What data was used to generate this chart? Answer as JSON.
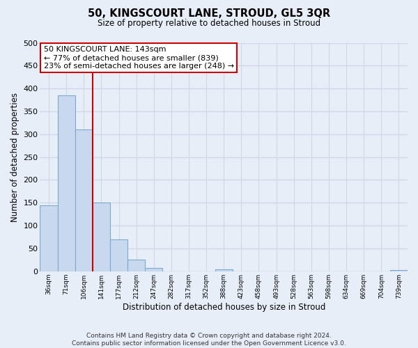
{
  "title": "50, KINGSCOURT LANE, STROUD, GL5 3QR",
  "subtitle": "Size of property relative to detached houses in Stroud",
  "xlabel": "Distribution of detached houses by size in Stroud",
  "ylabel": "Number of detached properties",
  "bin_labels": [
    "36sqm",
    "71sqm",
    "106sqm",
    "141sqm",
    "177sqm",
    "212sqm",
    "247sqm",
    "282sqm",
    "317sqm",
    "352sqm",
    "388sqm",
    "423sqm",
    "458sqm",
    "493sqm",
    "528sqm",
    "563sqm",
    "598sqm",
    "634sqm",
    "669sqm",
    "704sqm",
    "739sqm"
  ],
  "bar_values": [
    144,
    385,
    310,
    150,
    70,
    25,
    8,
    0,
    0,
    0,
    5,
    0,
    0,
    0,
    0,
    0,
    0,
    0,
    0,
    0,
    2
  ],
  "bar_fill_color": "#c8d8ee",
  "bar_edge_color": "#7aaacf",
  "property_line_color": "#cc0000",
  "property_line_x": 2.5,
  "annotation_title": "50 KINGSCOURT LANE: 143sqm",
  "annotation_line1": "← 77% of detached houses are smaller (839)",
  "annotation_line2": "23% of semi-detached houses are larger (248) →",
  "annotation_box_facecolor": "#ffffff",
  "annotation_box_edgecolor": "#cc0000",
  "ylim": [
    0,
    500
  ],
  "yticks": [
    0,
    50,
    100,
    150,
    200,
    250,
    300,
    350,
    400,
    450,
    500
  ],
  "grid_color": "#d0d8e8",
  "bg_color": "#e8eef8",
  "footer_line1": "Contains HM Land Registry data © Crown copyright and database right 2024.",
  "footer_line2": "Contains public sector information licensed under the Open Government Licence v3.0."
}
